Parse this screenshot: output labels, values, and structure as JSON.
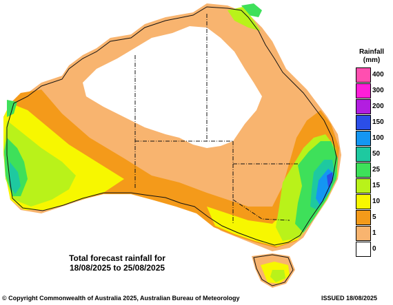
{
  "map": {
    "colors": {
      "c0": "#ffffff",
      "c1": "#f8b46f",
      "c5": "#f49a1a",
      "c10": "#f7f700",
      "c15": "#b9f21a",
      "c25": "#3ee05a",
      "c50": "#1ec9a0",
      "c100": "#1496f2",
      "c150": "#2b4ee8",
      "coast": "#111111"
    }
  },
  "legend": {
    "title_line1": "Rainfall",
    "title_line2": "(mm)",
    "items": [
      {
        "label": "400",
        "color": "#ff4fb0"
      },
      {
        "label": "300",
        "color": "#ff1ed8"
      },
      {
        "label": "200",
        "color": "#b21ee0"
      },
      {
        "label": "150",
        "color": "#2b4ee8"
      },
      {
        "label": "100",
        "color": "#1496f2"
      },
      {
        "label": "50",
        "color": "#1ec9a0"
      },
      {
        "label": "25",
        "color": "#3ee05a"
      },
      {
        "label": "15",
        "color": "#b9f21a"
      },
      {
        "label": "10",
        "color": "#f7f700"
      },
      {
        "label": "5",
        "color": "#f49a1a"
      },
      {
        "label": "1",
        "color": "#f8b46f"
      },
      {
        "label": "0",
        "color": "#ffffff"
      }
    ]
  },
  "caption": {
    "line1": "Total forecast rainfall for",
    "line2": "18/08/2025 to 25/08/2025"
  },
  "footer": {
    "copyright": "© Copyright Commonwealth of Australia 2025, Australian Bureau of Meteorology",
    "issued": "ISSUED 18/08/2025"
  }
}
